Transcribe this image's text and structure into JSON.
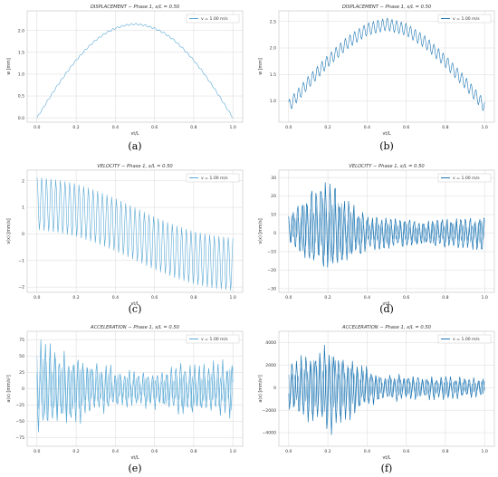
{
  "chart_data": [
    {
      "id": "a",
      "type": "line",
      "caption": "(a)",
      "title": "DISPLACEMENT − Phase 1,   x/L = 0.50",
      "xlabel": "vt/L",
      "ylabel": "w [mm]",
      "xlim": [
        -0.05,
        1.05
      ],
      "ylim": [
        -0.1,
        2.45
      ],
      "xticks": [
        "0.0",
        "0.2",
        "0.4",
        "0.6",
        "0.8",
        "1.0"
      ],
      "xtick_values": [
        0,
        0.2,
        0.4,
        0.6,
        0.8,
        1.0
      ],
      "yticks": [
        "0.0",
        "0.5",
        "1.0",
        "1.5",
        "2.0"
      ],
      "ytick_values": [
        0,
        0.5,
        1.0,
        1.5,
        2.0
      ],
      "grid": true,
      "legend": "top-right",
      "series": [
        {
          "name": "v = 1.00 m/s",
          "color": "#5aa9d6",
          "x": [
            0,
            0.05,
            0.1,
            0.15,
            0.2,
            0.25,
            0.3,
            0.35,
            0.4,
            0.45,
            0.5,
            0.55,
            0.6,
            0.65,
            0.7,
            0.75,
            0.8,
            0.85,
            0.9,
            0.95,
            1.0
          ],
          "y": [
            0,
            0.36,
            0.71,
            1.03,
            1.32,
            1.57,
            1.78,
            1.94,
            2.05,
            2.12,
            2.15,
            2.12,
            2.05,
            1.94,
            1.78,
            1.57,
            1.32,
            1.03,
            0.71,
            0.36,
            0
          ],
          "ripple_amplitude": 0.02,
          "ripple_cycles": 42
        }
      ]
    },
    {
      "id": "b",
      "type": "line",
      "caption": "(b)",
      "title": "DISPLACEMENT − Phase 1,   x/L = 0.50",
      "xlabel": "vt/L",
      "ylabel": "w [mm]",
      "xlim": [
        -0.05,
        1.05
      ],
      "ylim": [
        0.6,
        2.7
      ],
      "xticks": [
        "0.0",
        "0.2",
        "0.4",
        "0.6",
        "0.8",
        "1.0"
      ],
      "xtick_values": [
        0,
        0.2,
        0.4,
        0.6,
        0.8,
        1.0
      ],
      "yticks": [
        "1.0",
        "1.5",
        "2.0",
        "2.5"
      ],
      "ytick_values": [
        1.0,
        1.5,
        2.0,
        2.5
      ],
      "grid": true,
      "legend": "top-right",
      "series": [
        {
          "name": "v = 1.00 m/s",
          "color": "#1f77b4",
          "x": [
            0,
            0.1,
            0.2,
            0.3,
            0.4,
            0.5,
            0.6,
            0.7,
            0.8,
            0.9,
            1.0
          ],
          "y": [
            0.9,
            1.35,
            1.75,
            2.1,
            2.35,
            2.45,
            2.35,
            2.1,
            1.75,
            1.35,
            0.9
          ],
          "ripple_amplitude": 0.12,
          "ripple_cycles": 42
        }
      ]
    },
    {
      "id": "c",
      "type": "line",
      "caption": "(c)",
      "title": "VELOCITY − Phase 1,   x/L = 0.50",
      "xlabel": "vt/L",
      "ylabel": "v(x) [mm/s]",
      "xlim": [
        -0.05,
        1.05
      ],
      "ylim": [
        -2.2,
        2.4
      ],
      "xticks": [
        "0.0",
        "0.2",
        "0.4",
        "0.6",
        "0.8",
        "1.0"
      ],
      "xtick_values": [
        0,
        0.2,
        0.4,
        0.6,
        0.8,
        1.0
      ],
      "yticks": [
        "−2",
        "−1",
        "0",
        "1",
        "2"
      ],
      "ytick_values": [
        -2,
        -1,
        0,
        1,
        2
      ],
      "grid": true,
      "legend": "top-right",
      "series": [
        {
          "name": "v = 1.00 m/s",
          "color": "#5aa9d6",
          "x": [
            0,
            0.1,
            0.2,
            0.3,
            0.4,
            0.5,
            0.6,
            0.7,
            0.8,
            0.9,
            1.0
          ],
          "y": [
            1.15,
            1.05,
            0.9,
            0.65,
            0.35,
            0.0,
            -0.35,
            -0.65,
            -0.9,
            -1.05,
            -1.15
          ],
          "ripple_amplitude": 1.0,
          "ripple_cycles": 42
        }
      ]
    },
    {
      "id": "d",
      "type": "line",
      "caption": "(d)",
      "title": "VELOCITY − Phase 1,   x/L = 0.50",
      "xlabel": "vt/L",
      "ylabel": "v(x) [mm/s]",
      "xlim": [
        -0.05,
        1.05
      ],
      "ylim": [
        -32,
        34
      ],
      "xticks": [
        "0.0",
        "0.2",
        "0.4",
        "0.6",
        "0.8",
        "1.0"
      ],
      "xtick_values": [
        0,
        0.2,
        0.4,
        0.6,
        0.8,
        1.0
      ],
      "yticks": [
        "−30",
        "−20",
        "−10",
        "0",
        "10",
        "20",
        "30"
      ],
      "ytick_values": [
        -30,
        -20,
        -10,
        0,
        10,
        20,
        30
      ],
      "grid": true,
      "legend": "top-right",
      "series": [
        {
          "name": "v = 1.00 m/s",
          "color": "#1f77b4",
          "x": [
            0,
            0.1,
            0.2,
            0.3,
            0.4,
            0.5,
            0.6,
            0.7,
            0.8,
            0.9,
            1.0
          ],
          "y": [
            2,
            3,
            3,
            1,
            0,
            0,
            0,
            0,
            0,
            0,
            0
          ],
          "envelope": [
            10,
            22,
            30,
            20,
            11,
            10,
            9,
            8,
            9,
            10,
            11
          ],
          "ripple_cycles": 42
        }
      ]
    },
    {
      "id": "e",
      "type": "line",
      "caption": "(e)",
      "title": "ACCELERATION − Phase 1,   x/L = 0.50",
      "xlabel": "vt/L",
      "ylabel": "a(x) [mm/s²]",
      "xlim": [
        -0.05,
        1.05
      ],
      "ylim": [
        -88,
        88
      ],
      "xticks": [
        "0.0",
        "0.2",
        "0.4",
        "0.6",
        "0.8",
        "1.0"
      ],
      "xtick_values": [
        0,
        0.2,
        0.4,
        0.6,
        0.8,
        1.0
      ],
      "yticks": [
        "−75",
        "−50",
        "−25",
        "0",
        "25",
        "50",
        "75"
      ],
      "ytick_values": [
        -75,
        -50,
        -25,
        0,
        25,
        50,
        75
      ],
      "grid": true,
      "legend": "top-right",
      "series": [
        {
          "name": "v = 1.00 m/s",
          "color": "#5aa9d6",
          "x": [
            0,
            0.1,
            0.2,
            0.3,
            0.4,
            0.5,
            0.6,
            0.7,
            0.8,
            0.9,
            1.0
          ],
          "y": [
            0,
            0,
            0,
            0,
            0,
            0,
            0,
            0,
            0,
            0,
            0
          ],
          "envelope": [
            78,
            70,
            58,
            45,
            35,
            30,
            33,
            40,
            45,
            48,
            50
          ],
          "ripple_cycles": 42
        }
      ]
    },
    {
      "id": "f",
      "type": "line",
      "caption": "(f)",
      "title": "ACCELERATION − Phase 1,   x/L = 0.50",
      "xlabel": "vt/L",
      "ylabel": "a(x) [mm/s²]",
      "xlim": [
        -0.05,
        1.05
      ],
      "ylim": [
        -5200,
        5000
      ],
      "xticks": [
        "0.0",
        "0.2",
        "0.4",
        "0.6",
        "0.8",
        "1.0"
      ],
      "xtick_values": [
        0,
        0.2,
        0.4,
        0.6,
        0.8,
        1.0
      ],
      "yticks": [
        "−4000",
        "−2000",
        "0",
        "2000",
        "4000"
      ],
      "ytick_values": [
        -4000,
        -2000,
        0,
        2000,
        4000
      ],
      "grid": true,
      "legend": "top-right",
      "series": [
        {
          "name": "v = 1.00 m/s",
          "color": "#1f77b4",
          "x": [
            0,
            0.1,
            0.2,
            0.3,
            0.4,
            0.5,
            0.6,
            0.7,
            0.8,
            0.9,
            1.0
          ],
          "y": [
            0,
            0,
            0,
            0,
            0,
            0,
            0,
            0,
            0,
            0,
            0
          ],
          "envelope": [
            2500,
            3600,
            4500,
            3300,
            2000,
            1300,
            1300,
            1200,
            1100,
            1000,
            900
          ],
          "ripple_cycles": 42
        }
      ]
    }
  ]
}
